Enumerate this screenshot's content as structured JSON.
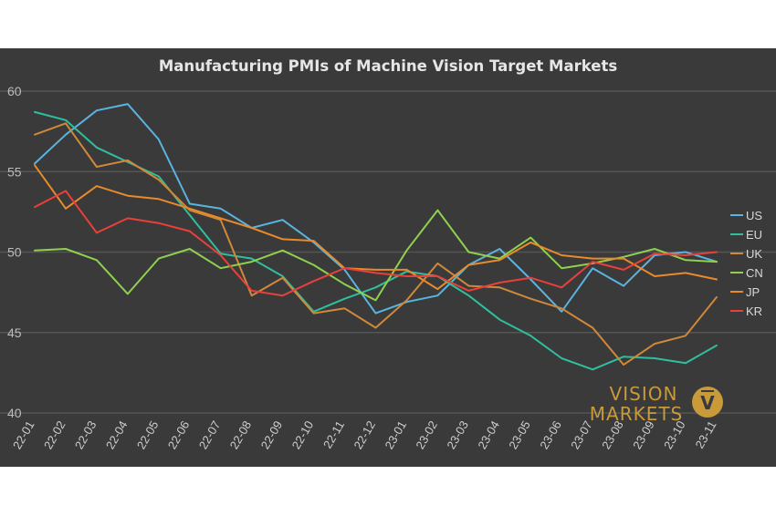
{
  "chart_data": {
    "type": "line",
    "title": "Manufacturing PMIs of Machine Vision Target Markets",
    "xlabel": "",
    "ylabel": "",
    "ylim": [
      40,
      60
    ],
    "yticks": [
      40,
      45,
      50,
      55,
      60
    ],
    "grid": "horizontal",
    "legend_position": "right",
    "categories": [
      "22-01",
      "22-02",
      "22-03",
      "22-04",
      "22-05",
      "22-06",
      "22-07",
      "22-08",
      "22-09",
      "22-10",
      "22-11",
      "22-12",
      "23-01",
      "23-02",
      "23-03",
      "23-04",
      "23-05",
      "23-06",
      "23-07",
      "23-08",
      "23-09",
      "23-10",
      "23-11"
    ],
    "series": [
      {
        "name": "US",
        "color": "#5ab4e0",
        "values": [
          55.5,
          57.3,
          58.8,
          59.2,
          57.0,
          53.0,
          52.7,
          51.5,
          52.0,
          50.6,
          48.9,
          46.2,
          46.9,
          47.3,
          49.2,
          50.2,
          48.3,
          46.3,
          49.0,
          47.9,
          49.8,
          50.0,
          49.4
        ]
      },
      {
        "name": "EU",
        "color": "#2fbf9f",
        "values": [
          58.7,
          58.2,
          56.5,
          55.6,
          54.7,
          52.3,
          49.9,
          49.6,
          48.5,
          46.3,
          47.1,
          47.8,
          48.8,
          48.5,
          47.3,
          45.8,
          44.8,
          43.4,
          42.7,
          43.5,
          43.4,
          43.1,
          44.2
        ]
      },
      {
        "name": "UK",
        "color": "#d0883a",
        "values": [
          57.3,
          58.0,
          55.3,
          55.7,
          54.5,
          52.6,
          52.0,
          47.3,
          48.4,
          46.2,
          46.5,
          45.3,
          47.0,
          49.3,
          47.9,
          47.8,
          47.1,
          46.5,
          45.3,
          43.0,
          44.3,
          44.8,
          47.2
        ]
      },
      {
        "name": "CN",
        "color": "#8fd14f",
        "values": [
          50.1,
          50.2,
          49.5,
          47.4,
          49.6,
          50.2,
          49.0,
          49.4,
          50.1,
          49.2,
          48.0,
          47.0,
          50.1,
          52.6,
          50.0,
          49.6,
          50.9,
          49.0,
          49.3,
          49.7,
          50.2,
          49.5,
          49.4
        ]
      },
      {
        "name": "JP",
        "color": "#e98a2b",
        "values": [
          55.4,
          52.7,
          54.1,
          53.5,
          53.3,
          52.7,
          52.1,
          51.5,
          50.8,
          50.7,
          49.0,
          48.9,
          48.9,
          47.7,
          49.2,
          49.5,
          50.6,
          49.8,
          49.6,
          49.6,
          48.5,
          48.7,
          48.3
        ]
      },
      {
        "name": "KR",
        "color": "#e8403a",
        "values": [
          52.8,
          53.8,
          51.2,
          52.1,
          51.8,
          51.3,
          49.8,
          47.6,
          47.3,
          48.2,
          49.0,
          48.7,
          48.5,
          48.5,
          47.6,
          48.1,
          48.4,
          47.8,
          49.4,
          48.9,
          49.9,
          49.8,
          50.0
        ]
      }
    ]
  },
  "brand": {
    "line1": "VISION",
    "line2": "MARKETS",
    "emblem_letter": "V",
    "color": "#c99a3a"
  }
}
